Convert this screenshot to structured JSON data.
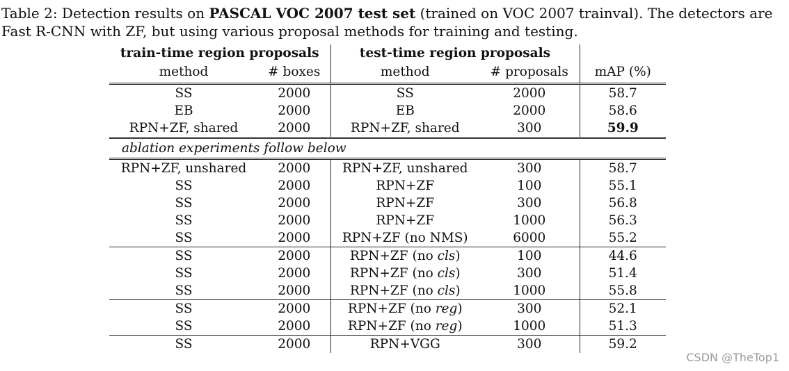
{
  "caption": {
    "prefix": "Table 2: Detection results on ",
    "bold": "PASCAL VOC 2007 test set",
    "suffix_line1": " (trained on VOC 2007 trainval). The detectors are",
    "line2": "Fast R-CNN with ZF, but using various proposal methods for training and testing."
  },
  "table": {
    "group_headers": {
      "train": "train-time region proposals",
      "test": "test-time region proposals"
    },
    "columns": [
      "method",
      "# boxes",
      "method",
      "# proposals",
      "mAP (%)"
    ],
    "ablation_label": "ablation experiments follow below",
    "top_rows": [
      {
        "train_method": "SS",
        "boxes": "2000",
        "test_method": "SS",
        "proposals": "2000",
        "map": "58.7"
      },
      {
        "train_method": "EB",
        "boxes": "2000",
        "test_method": "EB",
        "proposals": "2000",
        "map": "58.6"
      },
      {
        "train_method": "RPN+ZF, shared",
        "boxes": "2000",
        "test_method": "RPN+ZF, shared",
        "proposals": "300",
        "map": "59.9",
        "best": true
      }
    ],
    "ablation_rows": [
      {
        "train_method": "RPN+ZF, unshared",
        "boxes": "2000",
        "test_method": "RPN+ZF, unshared",
        "proposals": "300",
        "map": "58.7"
      },
      {
        "train_method": "SS",
        "boxes": "2000",
        "test_method": "RPN+ZF",
        "proposals": "100",
        "map": "55.1"
      },
      {
        "train_method": "SS",
        "boxes": "2000",
        "test_method": "RPN+ZF",
        "proposals": "300",
        "map": "56.8"
      },
      {
        "train_method": "SS",
        "boxes": "2000",
        "test_method": "RPN+ZF",
        "proposals": "1000",
        "map": "56.3"
      },
      {
        "train_method": "SS",
        "boxes": "2000",
        "test_method": "RPN+ZF (no NMS)",
        "proposals": "6000",
        "map": "55.2"
      },
      {
        "train_method": "SS",
        "boxes": "2000",
        "test_method": "RPN+ZF (no cls)",
        "proposals": "100",
        "map": "44.6"
      },
      {
        "train_method": "SS",
        "boxes": "2000",
        "test_method": "RPN+ZF (no cls)",
        "proposals": "300",
        "map": "51.4"
      },
      {
        "train_method": "SS",
        "boxes": "2000",
        "test_method": "RPN+ZF (no cls)",
        "proposals": "1000",
        "map": "55.8"
      },
      {
        "train_method": "SS",
        "boxes": "2000",
        "test_method": "RPN+ZF (no reg)",
        "proposals": "300",
        "map": "52.1"
      },
      {
        "train_method": "SS",
        "boxes": "2000",
        "test_method": "RPN+ZF (no reg)",
        "proposals": "1000",
        "map": "51.3"
      },
      {
        "train_method": "SS",
        "boxes": "2000",
        "test_method": "RPN+VGG",
        "proposals": "300",
        "map": "59.2"
      }
    ]
  },
  "watermark": "CSDN @TheTop1"
}
